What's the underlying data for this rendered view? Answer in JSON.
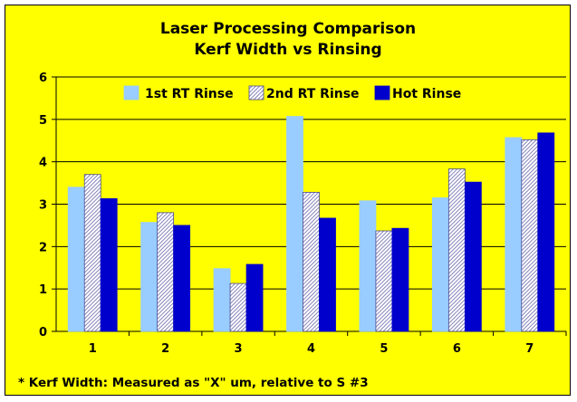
{
  "chart_data": {
    "type": "bar",
    "title": "Laser Processing Comparison",
    "subtitle": "Kerf Width vs Rinsing",
    "categories": [
      "1",
      "2",
      "3",
      "4",
      "5",
      "6",
      "7"
    ],
    "series": [
      {
        "name": "1st RT Rinse",
        "values": [
          3.4,
          2.57,
          1.48,
          5.07,
          3.08,
          3.15,
          4.57
        ],
        "color": "#99ccff",
        "pattern": "solid"
      },
      {
        "name": "2nd RT Rinse",
        "values": [
          3.7,
          2.8,
          1.13,
          3.28,
          2.37,
          3.83,
          4.52
        ],
        "color": "#9999cc",
        "pattern": "hatched"
      },
      {
        "name": "Hot Rinse",
        "values": [
          3.13,
          2.5,
          1.58,
          2.67,
          2.43,
          3.52,
          4.68
        ],
        "color": "#0000cc",
        "pattern": "solid"
      }
    ],
    "yticks": [
      "0",
      "1",
      "2",
      "3",
      "4",
      "5",
      "6"
    ],
    "ylim": [
      0,
      6
    ],
    "grid": true,
    "legend_position": "top",
    "background": "#ffff00",
    "footnote": "* Kerf Width: Measured as \"X\" um, relative to S #3"
  }
}
